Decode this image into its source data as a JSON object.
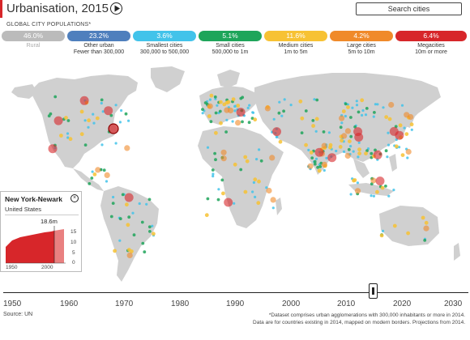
{
  "header": {
    "title": "Urbanisation, 2015",
    "search_placeholder": "Search cities"
  },
  "legend": {
    "label": "GLOBAL CITY POPULATIONS*",
    "items": [
      {
        "key": "rural",
        "percent": "46.0%",
        "line1": "Rural",
        "line2": "",
        "color": "#bbbbbb"
      },
      {
        "key": "other",
        "percent": "23.2%",
        "line1": "Other urban",
        "line2": "Fewer than 300,000",
        "color": "#4f7fbd"
      },
      {
        "key": "smallest",
        "percent": "3.6%",
        "line1": "Smallest cities",
        "line2": "300,000 to 500,000",
        "color": "#42c3ea"
      },
      {
        "key": "small",
        "percent": "5.1%",
        "line1": "Small cities",
        "line2": "500,000 to 1m",
        "color": "#1ea55a"
      },
      {
        "key": "medium",
        "percent": "11.6%",
        "line1": "Medium cities",
        "line2": "1m to 5m",
        "color": "#f7c234"
      },
      {
        "key": "large",
        "percent": "4.2%",
        "line1": "Large cities",
        "line2": "5m to 10m",
        "color": "#f08a2a"
      },
      {
        "key": "mega",
        "percent": "6.4%",
        "line1": "Megacities",
        "line2": "10m or more",
        "color": "#d7262a"
      }
    ]
  },
  "info_panel": {
    "city": "New York-Newark",
    "country": "United States",
    "value": "18.6m",
    "y_ticks": [
      "15",
      "10",
      "5",
      "0"
    ],
    "x_ticks": [
      "1950",
      "2000"
    ]
  },
  "timeline": {
    "years": [
      "1950",
      "1960",
      "1970",
      "1980",
      "1990",
      "2000",
      "2010",
      "2020",
      "2030"
    ],
    "current_year": 2015
  },
  "footer": {
    "source": "Source: UN",
    "note_line1": "*Dataset comprises urban agglomerations with 300,000 inhabitants or more in 2014.",
    "note_line2": "Data are for countries existing in 2014, mapped on modern borders. Projections from 2014."
  }
}
